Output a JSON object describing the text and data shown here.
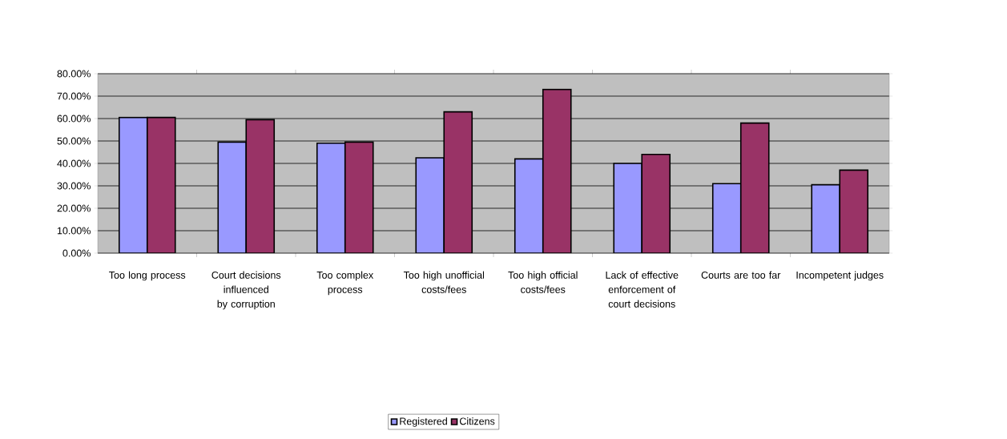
{
  "chart_data": {
    "type": "bar",
    "categories": [
      "Too long process",
      "Court decisions influenced by corruption",
      "Too complex process",
      "Too high unofficial costs/fees",
      "Too high official costs/fees",
      "Lack of effective enforcement of court decisions",
      "Courts are too far",
      "Incompetent judges"
    ],
    "series": [
      {
        "name": "Registered",
        "color": "#9999ff",
        "values": [
          60.5,
          49.5,
          49,
          42.5,
          42,
          40,
          31,
          30.5
        ]
      },
      {
        "name": "Citizens",
        "color": "#993366",
        "values": [
          60.5,
          59.5,
          49.5,
          63,
          73,
          44,
          58,
          37
        ]
      }
    ],
    "ylim": [
      0,
      80
    ],
    "yticks": [
      {
        "value": 0,
        "label": "0.00%"
      },
      {
        "value": 10,
        "label": "10.00%"
      },
      {
        "value": 20,
        "label": "20.00%"
      },
      {
        "value": 30,
        "label": "30.00%"
      },
      {
        "value": 40,
        "label": "40.00%"
      },
      {
        "value": 50,
        "label": "50.00%"
      },
      {
        "value": 60,
        "label": "60.00%"
      },
      {
        "value": 70,
        "label": "70.00%"
      },
      {
        "value": 80,
        "label": "80.00%"
      }
    ],
    "grid": "y",
    "legend": "bottom"
  }
}
